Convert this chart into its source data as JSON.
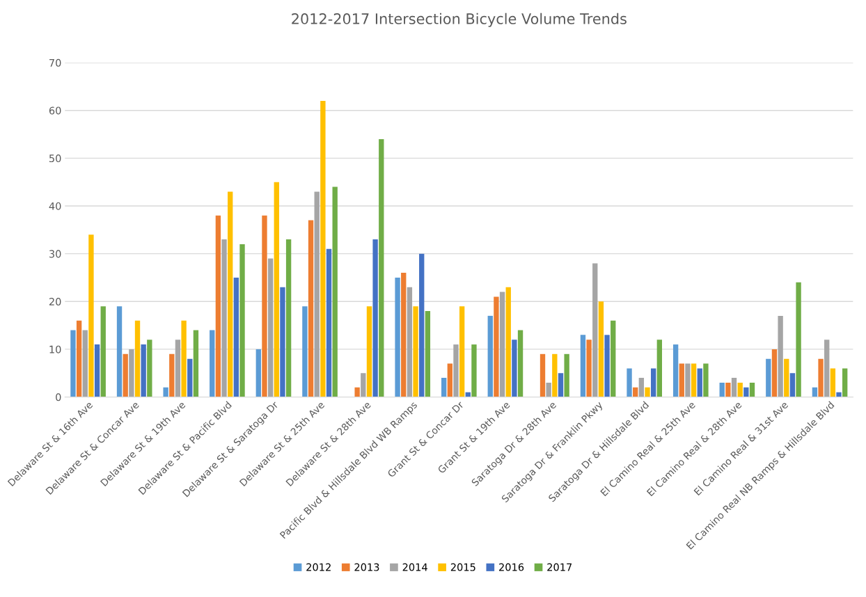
{
  "chart_data": {
    "type": "bar",
    "title": "2012-2017 Intersection Bicycle Volume Trends",
    "categories": [
      "Delaware St & 16th Ave",
      "Delaware St & Concar Ave",
      "Delaware St & 19th Ave",
      "Delaware St & Pacific Blvd",
      "Delaware St & Saratoga Dr",
      "Delaware St & 25th Ave",
      "Delaware St & 28th Ave",
      "Pacific Blvd & Hillsdale Blvd WB Ramps",
      "Grant St & Concar Dr",
      "Grant St & 19th Ave",
      "Saratoga Dr & 28th Ave",
      "Saratoga Dr & Franklin Pkwy",
      "Saratoga Dr & Hillsdale Blvd",
      "El Camino Real & 25th Ave",
      "El Camino Real & 28th Ave",
      "El Camino Real & 31st Ave",
      "El Camino Real NB Ramps & Hillsdale Blvd"
    ],
    "series": [
      {
        "name": "2012",
        "color": "#5b9bd5",
        "values": [
          14,
          19,
          2,
          14,
          10,
          19,
          null,
          25,
          4,
          17,
          null,
          13,
          6,
          11,
          3,
          8,
          2
        ]
      },
      {
        "name": "2013",
        "color": "#ed7d31",
        "values": [
          16,
          9,
          9,
          38,
          38,
          37,
          2,
          26,
          7,
          21,
          9,
          12,
          2,
          7,
          3,
          10,
          8
        ]
      },
      {
        "name": "2014",
        "color": "#a5a5a5",
        "values": [
          14,
          10,
          12,
          33,
          29,
          43,
          5,
          23,
          11,
          22,
          3,
          28,
          4,
          7,
          4,
          17,
          12
        ]
      },
      {
        "name": "2015",
        "color": "#ffc000",
        "values": [
          34,
          16,
          16,
          43,
          45,
          62,
          19,
          19,
          19,
          23,
          9,
          20,
          2,
          7,
          3,
          8,
          6
        ]
      },
      {
        "name": "2016",
        "color": "#4472c4",
        "values": [
          11,
          11,
          8,
          25,
          23,
          31,
          33,
          30,
          1,
          12,
          5,
          13,
          6,
          6,
          2,
          5,
          1
        ]
      },
      {
        "name": "2017",
        "color": "#70ad47",
        "values": [
          19,
          12,
          14,
          32,
          33,
          44,
          54,
          18,
          11,
          14,
          9,
          16,
          12,
          7,
          3,
          24,
          6
        ]
      }
    ],
    "ylim": [
      0,
      70
    ],
    "yticks": [
      0,
      10,
      20,
      30,
      40,
      50,
      60,
      70
    ],
    "grid": "y",
    "legend": "bottom"
  }
}
